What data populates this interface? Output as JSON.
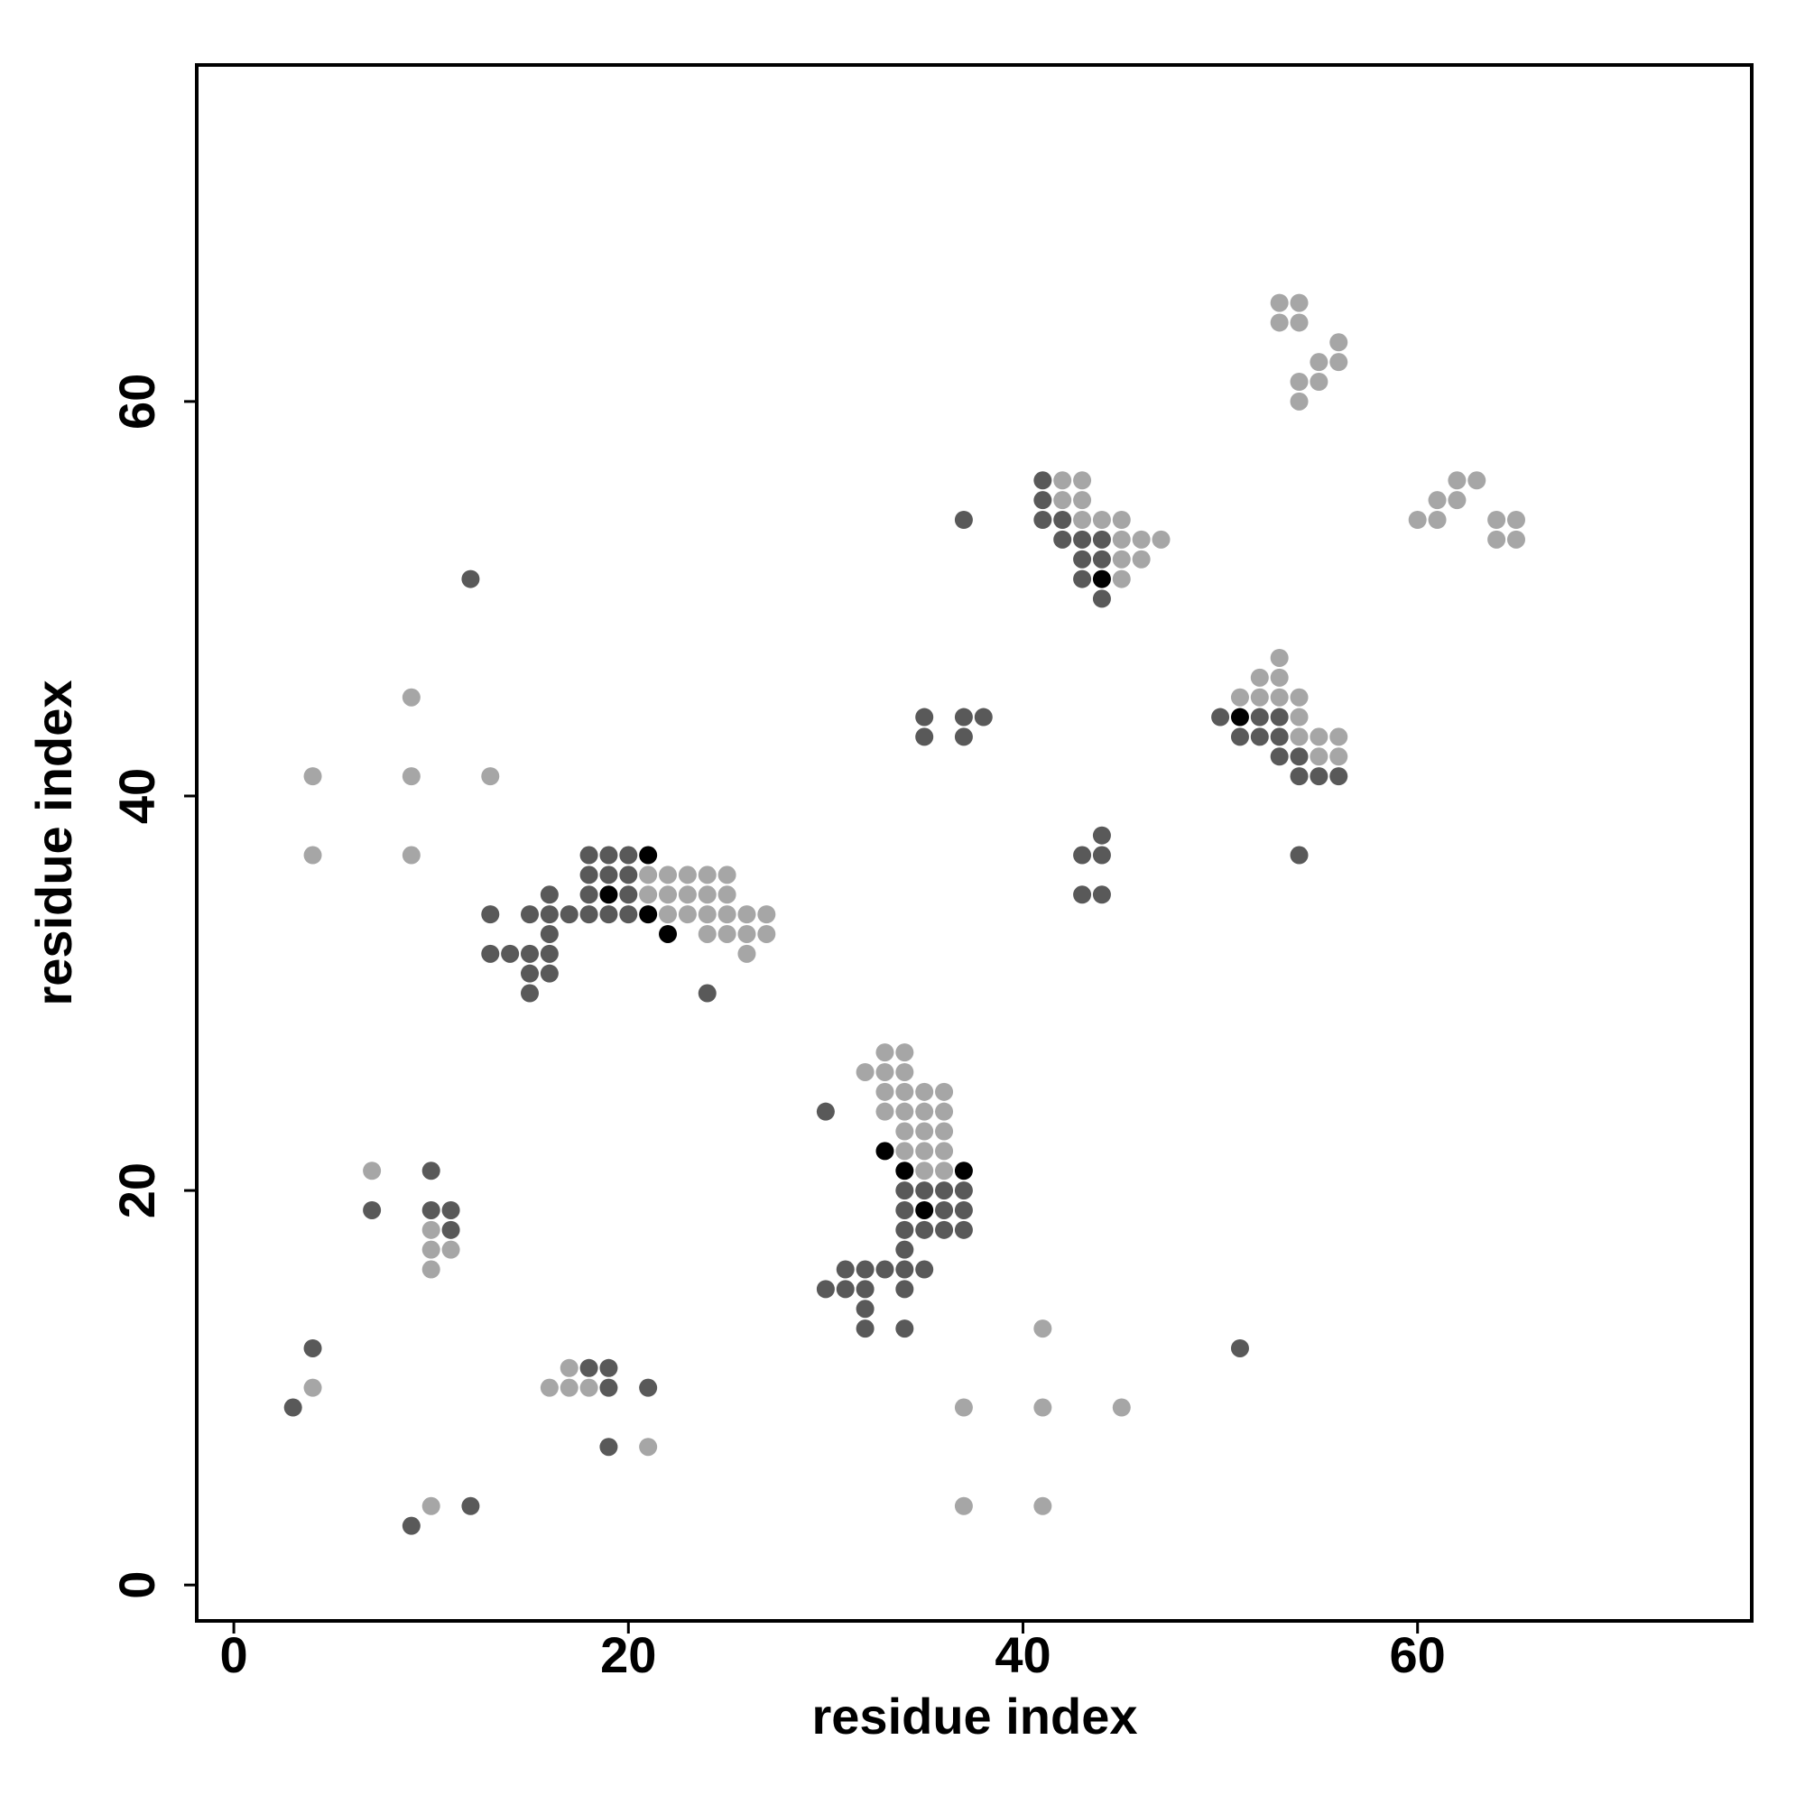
{
  "chart_data": {
    "type": "scatter",
    "x_label": "residue index",
    "y_label": "residue index",
    "xlim": [
      -1.88,
      76.94
    ],
    "ylim": [
      -1.82,
      77.06
    ],
    "xticks": [
      0,
      20,
      40,
      60
    ],
    "yticks": [
      0,
      20,
      40,
      60
    ],
    "series": [
      {
        "color": "#a6a6a6",
        "x": [
          53,
          54,
          53,
          54,
          56,
          55,
          56,
          54,
          55,
          54,
          62,
          63,
          61,
          62,
          60,
          61,
          64,
          65,
          64,
          65,
          42,
          43,
          42,
          43,
          43,
          44,
          45,
          45,
          46,
          47,
          45,
          46,
          45,
          53,
          52,
          53,
          51,
          52,
          53,
          54,
          9,
          54,
          54,
          55,
          56,
          55,
          56,
          4,
          9,
          13,
          4,
          9,
          21,
          22,
          23,
          24,
          25,
          21,
          22,
          23,
          24,
          25,
          22,
          23,
          24,
          25,
          26,
          27,
          24,
          25,
          26,
          27,
          26,
          33,
          34,
          32,
          33,
          34,
          33,
          34,
          35,
          36,
          33,
          34,
          35,
          36,
          34,
          35,
          36,
          34,
          35,
          36,
          35,
          36,
          7,
          10,
          10,
          11,
          10,
          41,
          17,
          4,
          16,
          17,
          18,
          37,
          41,
          45,
          21,
          10,
          37,
          41
        ],
        "y": [
          65,
          65,
          64,
          64,
          63,
          62,
          62,
          61,
          61,
          60,
          56,
          56,
          55,
          55,
          54,
          54,
          54,
          54,
          53,
          53,
          56,
          56,
          55,
          55,
          54,
          54,
          54,
          53,
          53,
          53,
          52,
          52,
          51,
          47,
          46,
          46,
          45,
          45,
          45,
          45,
          45,
          44,
          43,
          43,
          43,
          42,
          42,
          41,
          41,
          41,
          37,
          37,
          36,
          36,
          36,
          36,
          36,
          35,
          35,
          35,
          35,
          35,
          34,
          34,
          34,
          34,
          34,
          34,
          33,
          33,
          33,
          33,
          32,
          27,
          27,
          26,
          26,
          26,
          25,
          25,
          25,
          25,
          24,
          24,
          24,
          24,
          23,
          23,
          23,
          22,
          22,
          22,
          21,
          21,
          21,
          18,
          17,
          17,
          16,
          13,
          11,
          10,
          10,
          10,
          10,
          9,
          9,
          9,
          7,
          4,
          4,
          4
        ]
      },
      {
        "color": "#595959",
        "x": [
          41,
          41,
          41,
          42,
          37,
          42,
          43,
          44,
          43,
          44,
          43,
          12,
          44,
          50,
          52,
          53,
          35,
          37,
          38,
          51,
          52,
          53,
          35,
          37,
          53,
          54,
          54,
          55,
          56,
          44,
          43,
          44,
          54,
          18,
          19,
          20,
          18,
          19,
          20,
          16,
          18,
          20,
          43,
          44,
          13,
          15,
          16,
          17,
          18,
          19,
          20,
          16,
          13,
          14,
          15,
          16,
          15,
          16,
          15,
          24,
          30,
          10,
          34,
          35,
          36,
          37,
          34,
          36,
          37,
          7,
          10,
          11,
          34,
          35,
          36,
          37,
          11,
          34,
          31,
          32,
          33,
          34,
          35,
          30,
          31,
          32,
          34,
          32,
          32,
          34,
          4,
          51,
          18,
          19,
          19,
          21,
          3,
          19,
          12,
          9
        ],
        "y": [
          56,
          55,
          54,
          54,
          54,
          53,
          53,
          53,
          52,
          52,
          51,
          51,
          50,
          44,
          44,
          44,
          44,
          44,
          44,
          43,
          43,
          43,
          43,
          43,
          42,
          42,
          41,
          41,
          41,
          38,
          37,
          37,
          37,
          37,
          37,
          37,
          36,
          36,
          36,
          35,
          35,
          35,
          35,
          35,
          34,
          34,
          34,
          34,
          34,
          34,
          34,
          33,
          32,
          32,
          32,
          32,
          31,
          31,
          30,
          30,
          24,
          21,
          20,
          20,
          20,
          20,
          19,
          19,
          19,
          19,
          19,
          19,
          18,
          18,
          18,
          18,
          18,
          17,
          16,
          16,
          16,
          16,
          16,
          15,
          15,
          15,
          15,
          14,
          13,
          13,
          12,
          12,
          11,
          11,
          10,
          10,
          9,
          7,
          4,
          3
        ]
      },
      {
        "color": "#000000",
        "x": [
          21,
          19,
          21,
          22,
          33,
          34,
          37,
          35,
          44,
          51
        ],
        "y": [
          37,
          35,
          34,
          33,
          22,
          21,
          21,
          19,
          51,
          44
        ]
      }
    ]
  }
}
